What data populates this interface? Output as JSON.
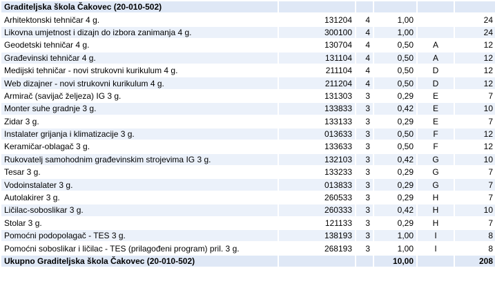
{
  "header": {
    "school": "Graditeljska škola Čakovec (20-010-502)"
  },
  "rows": [
    {
      "program": "Arhitektonski tehničar 4 g.",
      "code": "131204",
      "years": "4",
      "coef": "1,00",
      "group": "",
      "count": "24"
    },
    {
      "program": "Likovna umjetnost i dizajn do izbora zanimanja 4 g.",
      "code": "300100",
      "years": "4",
      "coef": "1,00",
      "group": "",
      "count": "24"
    },
    {
      "program": "Geodetski tehničar 4 g.",
      "code": "130704",
      "years": "4",
      "coef": "0,50",
      "group": "A",
      "count": "12"
    },
    {
      "program": "Građevinski tehničar 4 g.",
      "code": "131104",
      "years": "4",
      "coef": "0,50",
      "group": "A",
      "count": "12"
    },
    {
      "program": "Medijski tehničar - novi strukovni kurikulum 4 g.",
      "code": "211104",
      "years": "4",
      "coef": "0,50",
      "group": "D",
      "count": "12"
    },
    {
      "program": "Web dizajner - novi strukovni kurikulum 4 g.",
      "code": "211204",
      "years": "4",
      "coef": "0,50",
      "group": "D",
      "count": "12"
    },
    {
      "program": "Armirač (savijač željeza) IG 3 g.",
      "code": "131303",
      "years": "3",
      "coef": "0,29",
      "group": "E",
      "count": "7"
    },
    {
      "program": "Monter suhe gradnje 3 g.",
      "code": "133833",
      "years": "3",
      "coef": "0,42",
      "group": "E",
      "count": "10"
    },
    {
      "program": "Zidar 3 g.",
      "code": "133133",
      "years": "3",
      "coef": "0,29",
      "group": "E",
      "count": "7"
    },
    {
      "program": "Instalater grijanja i klimatizacije 3 g.",
      "code": "013633",
      "years": "3",
      "coef": "0,50",
      "group": "F",
      "count": "12"
    },
    {
      "program": "Keramičar-oblagač 3 g.",
      "code": "133633",
      "years": "3",
      "coef": "0,50",
      "group": "F",
      "count": "12"
    },
    {
      "program": "Rukovatelj samohodnim građevinskim strojevima IG 3 g.",
      "code": "132103",
      "years": "3",
      "coef": "0,42",
      "group": "G",
      "count": "10"
    },
    {
      "program": "Tesar 3 g.",
      "code": "133233",
      "years": "3",
      "coef": "0,29",
      "group": "G",
      "count": "7"
    },
    {
      "program": "Vodoinstalater 3 g.",
      "code": "013833",
      "years": "3",
      "coef": "0,29",
      "group": "G",
      "count": "7"
    },
    {
      "program": "Autolakirer 3 g.",
      "code": "260533",
      "years": "3",
      "coef": "0,29",
      "group": "H",
      "count": "7"
    },
    {
      "program": "Ličilac-soboslikar 3 g.",
      "code": "260333",
      "years": "3",
      "coef": "0,42",
      "group": "H",
      "count": "10"
    },
    {
      "program": "Stolar 3 g.",
      "code": "121133",
      "years": "3",
      "coef": "0,29",
      "group": "H",
      "count": "7"
    },
    {
      "program": "Pomoćni podopolagač - TES 3 g.",
      "code": "138193",
      "years": "3",
      "coef": "1,00",
      "group": "I",
      "count": "8"
    },
    {
      "program": "Pomoćni soboslikar i ličilac - TES (prilagođeni program) pril. 3 g.",
      "code": "268193",
      "years": "3",
      "coef": "1,00",
      "group": "I",
      "count": "8"
    }
  ],
  "footer": {
    "label": "Ukupno Graditeljska škola Čakovec (20-010-502)",
    "coef_total": "10,00",
    "count_total": "208"
  }
}
